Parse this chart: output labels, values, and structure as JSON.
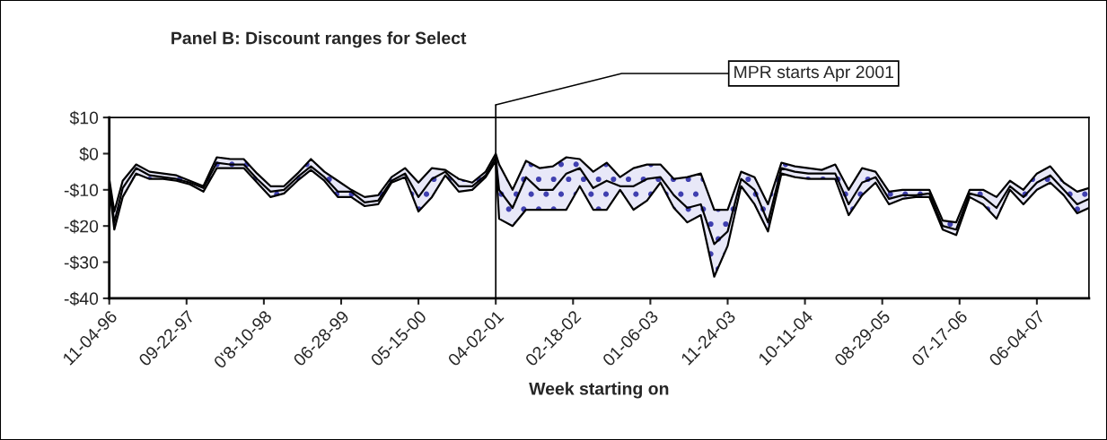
{
  "chart_data": {
    "type": "line",
    "title": "Panel B: Discount ranges for Select",
    "xlabel": "Week starting on",
    "x": [
      "1996-11-04",
      "1996-11-25",
      "1996-12-30",
      "1997-02-24",
      "1997-04-21",
      "1997-06-16",
      "1997-08-11",
      "1997-10-06",
      "1997-12-01",
      "1998-01-26",
      "1998-03-23",
      "1998-05-18",
      "1998-07-13",
      "1998-09-07",
      "1998-11-02",
      "1998-12-28",
      "1999-02-22",
      "1999-04-19",
      "1999-06-14",
      "1999-08-09",
      "1999-10-04",
      "1999-11-29",
      "2000-01-24",
      "2000-03-20",
      "2000-05-15",
      "2000-07-10",
      "2000-09-04",
      "2000-10-30",
      "2000-12-25",
      "2001-02-19",
      "2001-04-02",
      "2001-04-16",
      "2001-06-11",
      "2001-08-06",
      "2001-10-01",
      "2001-11-26",
      "2002-01-21",
      "2002-03-18",
      "2002-05-13",
      "2002-07-08",
      "2002-09-02",
      "2002-10-28",
      "2002-12-23",
      "2003-02-17",
      "2003-04-14",
      "2003-06-09",
      "2003-08-04",
      "2003-09-29",
      "2003-11-24",
      "2004-01-19",
      "2004-03-15",
      "2004-05-10",
      "2004-07-05",
      "2004-08-30",
      "2004-10-25",
      "2004-12-20",
      "2005-02-14",
      "2005-04-11",
      "2005-06-06",
      "2005-08-01",
      "2005-09-26",
      "2005-11-21",
      "2006-01-16",
      "2006-03-13",
      "2006-05-08",
      "2006-07-03",
      "2006-08-28",
      "2006-10-23",
      "2006-12-18",
      "2007-02-12",
      "2007-04-09",
      "2007-06-04",
      "2007-07-30",
      "2007-09-24",
      "2007-11-19",
      "2008-01-07"
    ],
    "series": [
      {
        "color": "#000000",
        "values": [
          -7,
          -16,
          -7.5,
          -3,
          -5,
          -5.5,
          -6,
          -7.5,
          -9,
          -1,
          -1.5,
          -1.5,
          -5.5,
          -9,
          -9,
          -5.5,
          -1.5,
          -5,
          -7.5,
          -10,
          -12,
          -11.5,
          -6.5,
          -4,
          -8,
          -4,
          -4.5,
          -7,
          -8,
          -5,
          0,
          -3,
          -10,
          -2,
          -4,
          -3.5,
          -1,
          -1.5,
          -5,
          -2.5,
          -6.5,
          -4,
          -3,
          -3,
          -7,
          -6.5,
          -5.5,
          -15.5,
          -15.5,
          -5,
          -6.5,
          -14,
          -2.5,
          -3.5,
          -4,
          -4.5,
          -3,
          -10,
          -4,
          -5,
          -10.5,
          -10,
          -10,
          -10,
          -18.5,
          -19,
          -10,
          -10,
          -12,
          -7.5,
          -10,
          -5.5,
          -3.5,
          -8,
          -10.5,
          -9.5
        ]
      },
      {
        "color": "#000000",
        "values": [
          -9,
          -21,
          -12,
          -5.5,
          -7,
          -7,
          -7.5,
          -8.5,
          -10.5,
          -4,
          -4,
          -4,
          -8,
          -12,
          -11,
          -7.5,
          -4.5,
          -7.5,
          -12,
          -12,
          -14.5,
          -14,
          -8,
          -6.5,
          -16,
          -12,
          -6,
          -10.5,
          -10,
          -6.5,
          -2,
          -18,
          -20,
          -15.5,
          -15.5,
          -15.5,
          -15.5,
          -9,
          -15.5,
          -15.5,
          -10,
          -15.5,
          -13,
          -8,
          -15,
          -19,
          -17,
          -34,
          -25.5,
          -9,
          -14,
          -21.5,
          -5.5,
          -6.5,
          -7,
          -7,
          -7,
          -17,
          -11.5,
          -8,
          -14,
          -12.5,
          -12,
          -12,
          -21,
          -22.5,
          -12,
          -14,
          -18,
          -10,
          -14,
          -10,
          -8,
          -11.5,
          -16.5,
          -15
        ]
      },
      {
        "color": "#000000",
        "values": [
          -8,
          -19,
          -9.5,
          -4,
          -6,
          -6.5,
          -7,
          -8,
          -9.5,
          -2.5,
          -3,
          -3,
          -7,
          -10.5,
          -10,
          -6.5,
          -3.5,
          -6.5,
          -10.5,
          -10.5,
          -13.5,
          -13,
          -7.5,
          -5.5,
          -12,
          -7,
          -5,
          -9,
          -9,
          -6,
          -1,
          -10,
          -15,
          -6.5,
          -10,
          -10,
          -5.5,
          -4,
          -9.5,
          -7.5,
          -9,
          -9,
          -7,
          -6.5,
          -11.5,
          -15,
          -14,
          -25,
          -21.5,
          -7,
          -10,
          -19,
          -4,
          -5,
          -5.5,
          -5.5,
          -5.5,
          -14,
          -8,
          -6.5,
          -12.5,
          -11.5,
          -11.5,
          -11,
          -20,
          -21,
          -11,
          -12,
          -15,
          -9,
          -12,
          -8,
          -6,
          -10,
          -14,
          -12.5
        ],
        "upper": [
          -7,
          -16,
          -7.5,
          -3,
          -5,
          -5.5,
          -6,
          -7.5,
          -9,
          -1,
          -1.5,
          -1.5,
          -5.5,
          -9,
          -9,
          -5.5,
          -1.5,
          -5,
          -7.5,
          -10,
          -12,
          -11.5,
          -6.5,
          -4,
          -8,
          -4,
          -4.5,
          -7,
          -8,
          -5,
          0,
          -3,
          -10,
          -2,
          -4,
          -3.5,
          -1,
          -1.5,
          -5,
          -2.5,
          -6.5,
          -4,
          -3,
          -3,
          -7,
          -6.5,
          -5.5,
          -15.5,
          -15.5,
          -5,
          -6.5,
          -14,
          -2.5,
          -3.5,
          -4,
          -4.5,
          -3,
          -10,
          -4,
          -5,
          -10.5,
          -10,
          -10,
          -10,
          -18.5,
          -19,
          -10,
          -10,
          -12,
          -7.5,
          -10,
          -5.5,
          -3.5,
          -8,
          -10.5,
          -9.5
        ],
        "lower": [
          -9,
          -21,
          -12,
          -5.5,
          -7,
          -7,
          -7.5,
          -8.5,
          -10.5,
          -4,
          -4,
          -4,
          -8,
          -12,
          -11,
          -7.5,
          -4.5,
          -7.5,
          -12,
          -12,
          -14.5,
          -14,
          -8,
          -6.5,
          -16,
          -12,
          -6,
          -10.5,
          -10,
          -6.5,
          -2,
          -18,
          -20,
          -15.5,
          -15.5,
          -15.5,
          -15.5,
          -9,
          -15.5,
          -15.5,
          -10,
          -15.5,
          -13,
          -8,
          -15,
          -19,
          -17,
          -34,
          -25.5,
          -9,
          -14,
          -21.5,
          -5.5,
          -6.5,
          -7,
          -7,
          -7,
          -17,
          -11.5,
          -8,
          -14,
          -12.5,
          -12,
          -12,
          -21,
          -22.5,
          -12,
          -14,
          -18,
          -10,
          -14,
          -10,
          -8,
          -11.5,
          -16.5,
          -15
        ]
      }
    ],
    "xlim": [
      "1996-11-04",
      "2008-01-07"
    ],
    "xticks": [
      {
        "value": "1996-11-04",
        "label": "11-04-96"
      },
      {
        "value": "1997-09-22",
        "label": "09-22-97"
      },
      {
        "value": "1998-08-10",
        "label": "0'8-10-98"
      },
      {
        "value": "1999-06-28",
        "label": "06-28-99"
      },
      {
        "value": "2000-05-15",
        "label": "05-15-00"
      },
      {
        "value": "2001-04-02",
        "label": "04-02-01"
      },
      {
        "value": "2002-02-18",
        "label": "02-18-02"
      },
      {
        "value": "2003-01-06",
        "label": "01-06-03"
      },
      {
        "value": "2003-11-24",
        "label": "11-24-03"
      },
      {
        "value": "2004-10-11",
        "label": "10-11-04"
      },
      {
        "value": "2005-08-29",
        "label": "08-29-05"
      },
      {
        "value": "2006-07-17",
        "label": "07-17-06"
      },
      {
        "value": "2007-06-04",
        "label": "06-04-07"
      }
    ],
    "ylim": [
      -40,
      10
    ],
    "yticks": [
      {
        "value": -40,
        "label": "-$40"
      },
      {
        "value": -30,
        "label": "-$30"
      },
      {
        "value": -20,
        "label": "-$20"
      },
      {
        "value": -10,
        "label": "-$10"
      },
      {
        "value": 0,
        "label": "$0"
      },
      {
        "value": 10,
        "label": "$10"
      }
    ],
    "ref_lines": [
      {
        "axis": "x",
        "value": "2001-04-02",
        "label": "MPR starts Apr 2001",
        "color": "#000000"
      }
    ],
    "grid": false,
    "legend": false,
    "marker": "none",
    "line_style": "solid"
  }
}
